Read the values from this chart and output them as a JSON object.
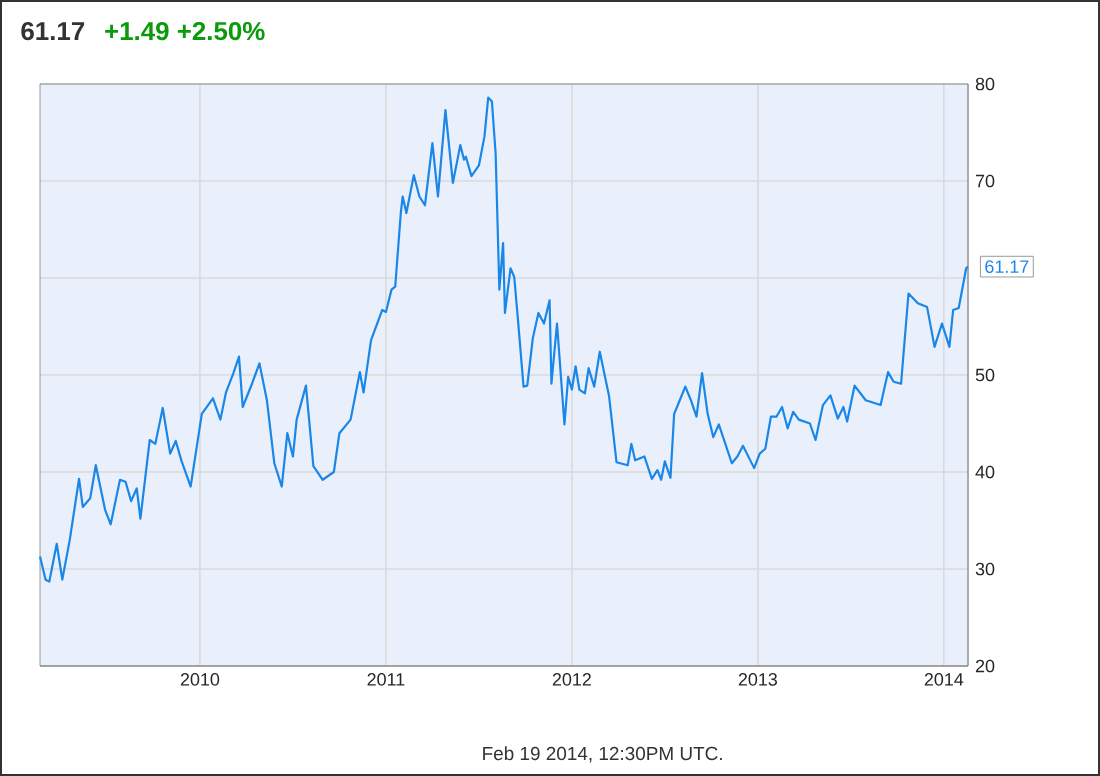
{
  "chart_data": {
    "type": "line",
    "title": "61.17",
    "subtitle": "+1.49 +2.50%",
    "x": [
      2009.14,
      2009.17,
      2009.19,
      2009.23,
      2009.26,
      2009.3,
      2009.35,
      2009.37,
      2009.41,
      2009.44,
      2009.49,
      2009.52,
      2009.57,
      2009.6,
      2009.63,
      2009.66,
      2009.68,
      2009.73,
      2009.76,
      2009.8,
      2009.84,
      2009.87,
      2009.9,
      2009.95,
      2009.97,
      2010.01,
      2010.07,
      2010.11,
      2010.14,
      2010.18,
      2010.21,
      2010.23,
      2010.28,
      2010.32,
      2010.36,
      2010.4,
      2010.44,
      2010.47,
      2010.5,
      2010.52,
      2010.57,
      2010.61,
      2010.66,
      2010.72,
      2010.75,
      2010.81,
      2010.86,
      2010.88,
      2010.92,
      2010.98,
      2011.0,
      2011.03,
      2011.05,
      2011.08,
      2011.09,
      2011.11,
      2011.15,
      2011.18,
      2011.21,
      2011.25,
      2011.28,
      2011.32,
      2011.36,
      2011.4,
      2011.42,
      2011.43,
      2011.46,
      2011.5,
      2011.53,
      2011.55,
      2011.57,
      2011.59,
      2011.61,
      2011.63,
      2011.64,
      2011.67,
      2011.69,
      2011.71,
      2011.74,
      2011.76,
      2011.79,
      2011.82,
      2011.85,
      2011.88,
      2011.89,
      2011.92,
      2011.96,
      2011.98,
      2012.0,
      2012.02,
      2012.04,
      2012.07,
      2012.09,
      2012.12,
      2012.15,
      2012.2,
      2012.24,
      2012.3,
      2012.32,
      2012.34,
      2012.39,
      2012.43,
      2012.46,
      2012.48,
      2012.5,
      2012.53,
      2012.55,
      2012.58,
      2012.61,
      2012.64,
      2012.67,
      2012.7,
      2012.73,
      2012.76,
      2012.79,
      2012.86,
      2012.89,
      2012.92,
      2012.98,
      2013.01,
      2013.04,
      2013.07,
      2013.1,
      2013.13,
      2013.16,
      2013.19,
      2013.22,
      2013.28,
      2013.31,
      2013.35,
      2013.39,
      2013.43,
      2013.46,
      2013.48,
      2013.52,
      2013.58,
      2013.66,
      2013.7,
      2013.73,
      2013.77,
      2013.81,
      2013.86,
      2013.91,
      2013.95,
      2013.99,
      2014.03,
      2014.05,
      2014.08,
      2014.12,
      2014.13
    ],
    "series": [
      {
        "color": "#1a87e8",
        "values": [
          31.3,
          28.9,
          28.7,
          32.6,
          28.9,
          33.0,
          39.3,
          36.4,
          37.3,
          40.7,
          36.1,
          34.6,
          39.2,
          39.0,
          37.0,
          38.3,
          35.2,
          43.3,
          42.9,
          46.6,
          41.9,
          43.2,
          41.2,
          38.5,
          41.0,
          46.0,
          47.6,
          45.4,
          48.2,
          50.2,
          51.9,
          46.7,
          49.1,
          51.2,
          47.4,
          40.9,
          38.5,
          44.0,
          41.6,
          45.4,
          48.9,
          40.6,
          39.2,
          40.0,
          44.0,
          45.4,
          50.3,
          48.2,
          53.6,
          56.7,
          56.5,
          58.8,
          59.1,
          66.7,
          68.4,
          66.7,
          70.6,
          68.4,
          67.5,
          73.9,
          68.4,
          77.3,
          69.8,
          73.7,
          72.2,
          72.5,
          70.5,
          71.6,
          74.6,
          78.6,
          78.2,
          72.8,
          58.8,
          63.6,
          56.4,
          61.0,
          60.1,
          55.7,
          48.8,
          48.9,
          53.8,
          56.4,
          55.3,
          57.7,
          49.1,
          55.3,
          44.9,
          49.8,
          48.5,
          50.9,
          48.5,
          48.1,
          50.7,
          48.8,
          52.4,
          47.8,
          41.0,
          40.7,
          42.9,
          41.2,
          41.6,
          39.3,
          40.2,
          39.2,
          41.1,
          39.4,
          46.0,
          47.4,
          48.8,
          47.4,
          45.7,
          50.2,
          46.0,
          43.6,
          44.9,
          40.9,
          41.6,
          42.7,
          40.4,
          41.9,
          42.4,
          45.7,
          45.7,
          46.7,
          44.5,
          46.2,
          45.4,
          45.0,
          43.3,
          46.9,
          47.9,
          45.5,
          46.7,
          45.2,
          48.9,
          47.4,
          46.9,
          50.3,
          49.3,
          49.1,
          58.4,
          57.4,
          57.0,
          52.9,
          55.3,
          52.9,
          56.7,
          56.9,
          61.0,
          61.17
        ]
      }
    ],
    "xlim": [
      2009.14,
      2014.13
    ],
    "xticks": [
      2010,
      2011,
      2012,
      2013,
      2014
    ],
    "ylim": [
      20,
      80
    ],
    "yticks": [
      20,
      30,
      40,
      50,
      {
        "value": 60,
        "label": null
      },
      70,
      80
    ],
    "grid": true,
    "marker": "none",
    "line_style": "solid",
    "annotations": [
      {
        "text": "61.17",
        "x": 2014.13,
        "y": 61.17
      },
      "Feb 19 2014, 12:30PM UTC."
    ]
  }
}
